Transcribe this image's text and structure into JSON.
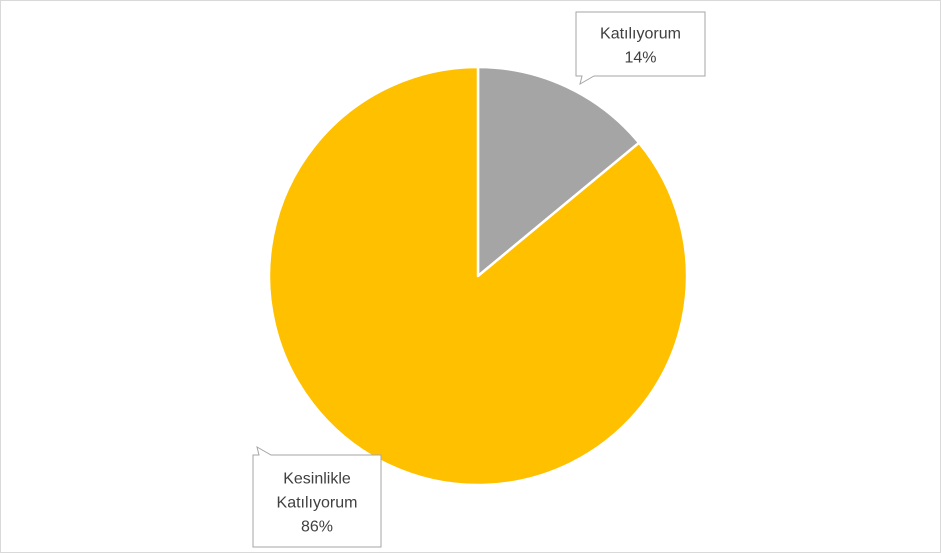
{
  "chart_data": {
    "type": "pie",
    "title": "",
    "slices": [
      {
        "label": "Katılıyorum",
        "value": 14,
        "display": "14%",
        "color": "#a5a5a5"
      },
      {
        "label": "Kesinlikle Katılıyorum",
        "value": 86,
        "display": "86%",
        "color": "#ffc000"
      }
    ],
    "callouts": [
      {
        "lines": [
          "Katılıyorum",
          "14%"
        ]
      },
      {
        "lines": [
          "Kesinlikle",
          "Katılıyorum",
          "86%"
        ]
      }
    ],
    "start_angle_deg": 0,
    "direction": "clockwise",
    "legend": "none",
    "slice_border_color": "#ffffff"
  }
}
